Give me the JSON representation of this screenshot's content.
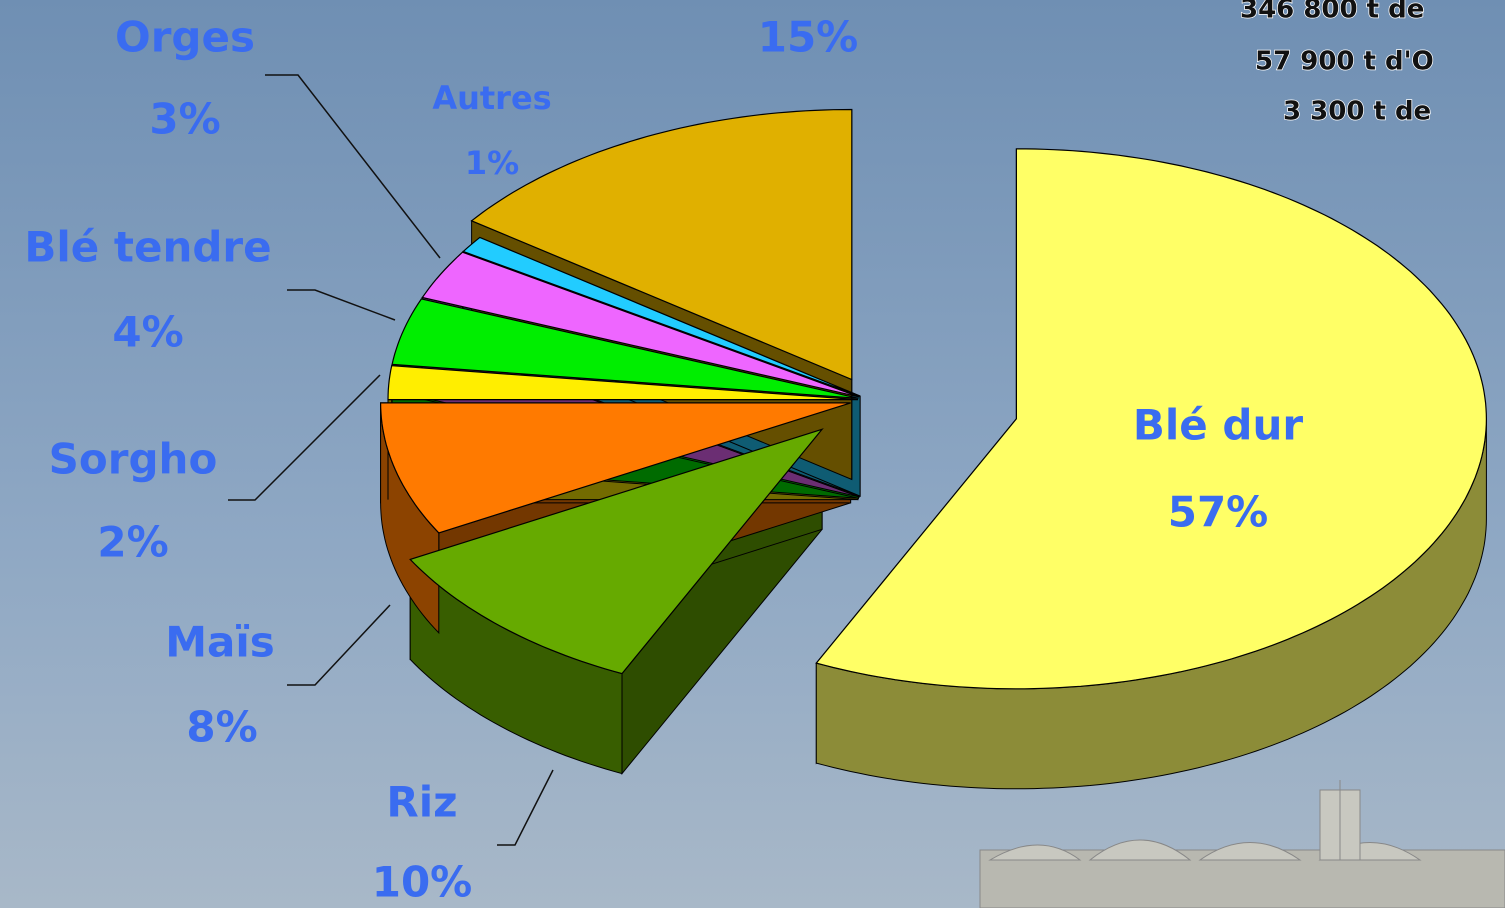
{
  "chart_data": {
    "type": "pie",
    "categories": [
      "Blé dur",
      "Riz",
      "Maïs",
      "Sorgho",
      "Blé tendre",
      "Orges",
      "Autres",
      null
    ],
    "values": [
      57,
      10,
      8,
      2,
      4,
      3,
      1,
      15
    ],
    "value_labels": [
      "57%",
      "10%",
      "8%",
      "2%",
      "4%",
      "3%",
      "1%",
      "15%"
    ],
    "colors": [
      "#ffff66",
      "#66aa00",
      "#ff7a00",
      "#ffee00",
      "#00ee00",
      "#ee66ff",
      "#22ccff",
      "#e0b000"
    ],
    "annotations": [
      "346 800 t de",
      "57 900 t d'O",
      "3 300 t de"
    ]
  }
}
